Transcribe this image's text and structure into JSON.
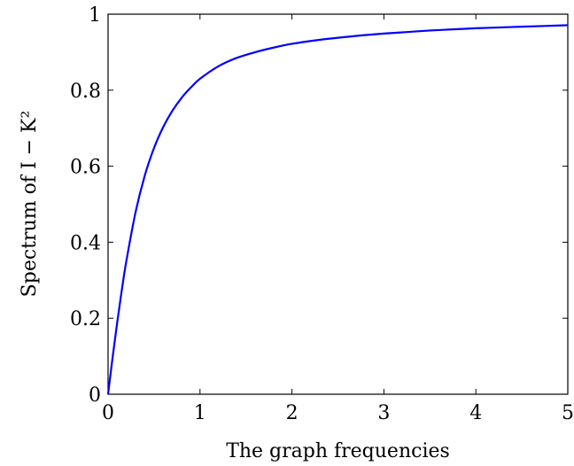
{
  "chart_data": {
    "type": "line",
    "xlabel": "The graph frequencies",
    "ylabel": "Spectrum of I − K²",
    "xlim": [
      0,
      5
    ],
    "ylim": [
      0,
      1
    ],
    "xticks": [
      "0",
      "1",
      "2",
      "3",
      "4",
      "5"
    ],
    "yticks": [
      "0",
      "0.2",
      "0.4",
      "0.6",
      "0.8",
      "1"
    ],
    "grid": false,
    "series": [
      {
        "color": "#0000ff",
        "x": [
          0,
          0.05,
          0.1,
          0.15,
          0.2,
          0.3,
          0.4,
          0.5,
          0.6,
          0.7,
          0.8,
          0.9,
          1.0,
          1.2,
          1.4,
          1.6,
          1.8,
          2.0,
          2.25,
          2.5,
          2.75,
          3.0,
          3.25,
          3.5,
          3.75,
          4.0,
          4.25,
          4.5,
          4.75,
          5.0
        ],
        "y": [
          0,
          0.098,
          0.19,
          0.275,
          0.352,
          0.48,
          0.576,
          0.648,
          0.703,
          0.746,
          0.78,
          0.807,
          0.83,
          0.863,
          0.885,
          0.9,
          0.912,
          0.922,
          0.931,
          0.938,
          0.944,
          0.949,
          0.953,
          0.957,
          0.96,
          0.963,
          0.965,
          0.967,
          0.969,
          0.971
        ]
      }
    ]
  }
}
